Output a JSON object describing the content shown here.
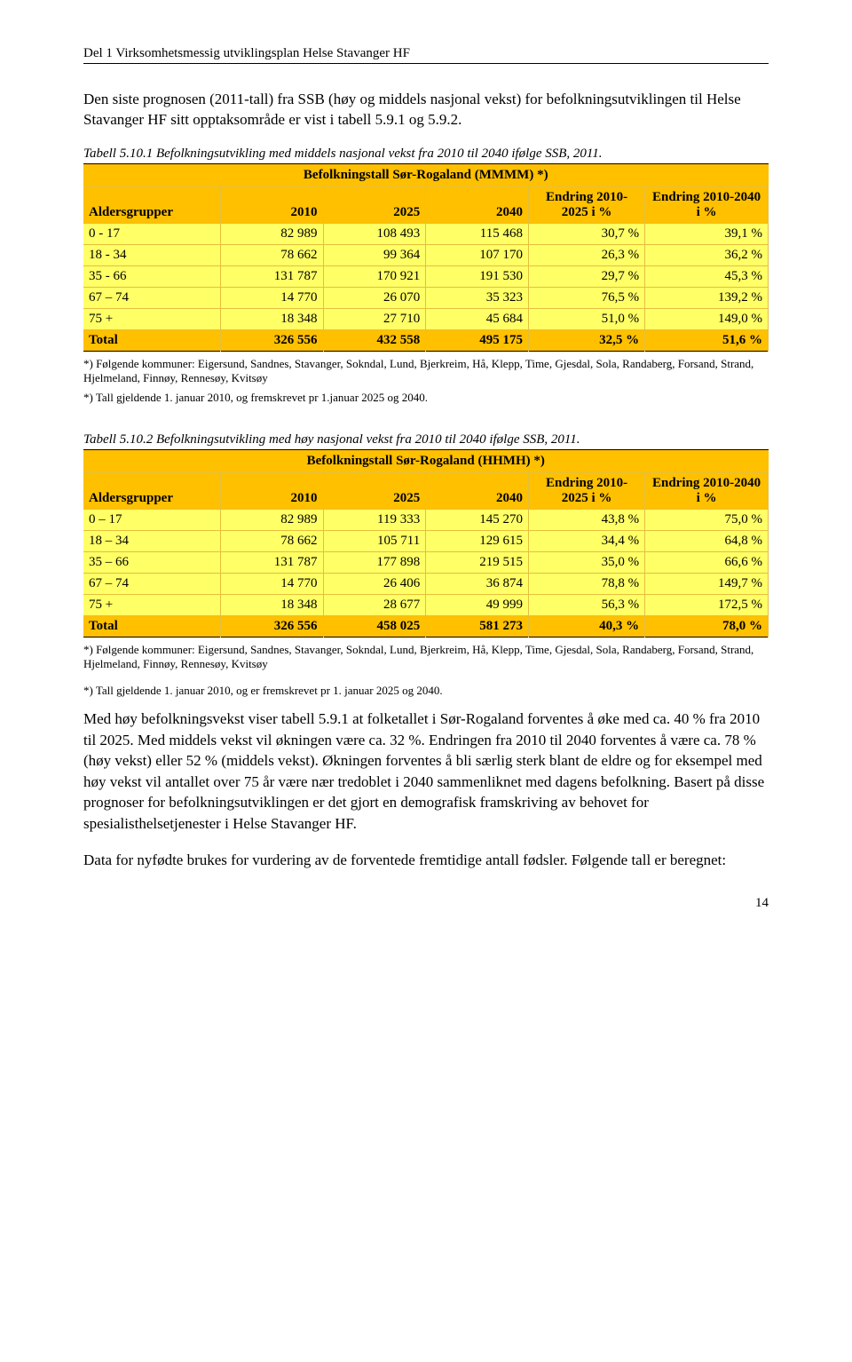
{
  "header": "Del 1 Virksomhetsmessig utviklingsplan Helse Stavanger HF",
  "intro": "Den siste prognosen (2011-tall) fra SSB (høy og middels nasjonal vekst) for befolkningsutviklingen til Helse Stavanger HF sitt opptaksområde er vist i tabell 5.9.1 og 5.9.2.",
  "table1": {
    "caption": "Tabell 5.10.1 Befolkningsutvikling med middels nasjonal vekst fra 2010 til 2040 ifølge SSB, 2011.",
    "title": "Befolkningstall Sør-Rogaland (MMMM) *)",
    "colors": {
      "title_bg": "#ffc000",
      "header_bg": "#ffc000",
      "row_bg": "#ffff66",
      "total_bg": "#ffc000",
      "border": "#e4bf3e"
    },
    "col_widths": [
      "20%",
      "15%",
      "15%",
      "15%",
      "17%",
      "18%"
    ],
    "headers": [
      "Aldersgrupper",
      "2010",
      "2025",
      "2040",
      "Endring 2010-2025 i %",
      "Endring 2010-2040 i %"
    ],
    "rows": [
      {
        "g": "0 - 17",
        "a": "82 989",
        "b": "108 493",
        "c": "115 468",
        "d": "30,7 %",
        "e": "39,1 %"
      },
      {
        "g": "18 - 34",
        "a": "78 662",
        "b": "99 364",
        "c": "107 170",
        "d": "26,3 %",
        "e": "36,2 %"
      },
      {
        "g": "35 - 66",
        "a": "131 787",
        "b": "170 921",
        "c": "191 530",
        "d": "29,7 %",
        "e": "45,3 %"
      },
      {
        "g": "67 – 74",
        "a": "14 770",
        "b": "26 070",
        "c": "35 323",
        "d": "76,5 %",
        "e": "139,2 %"
      },
      {
        "g": "75 +",
        "a": "18 348",
        "b": "27 710",
        "c": "45 684",
        "d": "51,0 %",
        "e": "149,0 %"
      }
    ],
    "total": {
      "g": "Total",
      "a": "326 556",
      "b": "432 558",
      "c": "495 175",
      "d": "32,5 %",
      "e": "51,6 %"
    }
  },
  "footnote1a": "*) Følgende kommuner: Eigersund, Sandnes, Stavanger, Sokndal, Lund, Bjerkreim, Hå, Klepp, Time, Gjesdal, Sola, Randaberg, Forsand, Strand, Hjelmeland, Finnøy, Rennesøy, Kvitsøy",
  "footnote1b": "*) Tall gjeldende 1. januar 2010, og fremskrevet pr 1.januar 2025 og 2040.",
  "table2": {
    "caption": "Tabell 5.10.2 Befolkningsutvikling med høy nasjonal vekst fra 2010 til 2040 ifølge SSB, 2011.",
    "title": "Befolkningstall Sør-Rogaland (HHMH) *)",
    "colors": {
      "title_bg": "#ffc000",
      "header_bg": "#ffc000",
      "row_bg": "#ffff66",
      "total_bg": "#ffc000",
      "border": "#e4bf3e"
    },
    "col_widths": [
      "20%",
      "15%",
      "15%",
      "15%",
      "17%",
      "18%"
    ],
    "headers": [
      "Aldersgrupper",
      "2010",
      "2025",
      "2040",
      "Endring 2010-2025 i %",
      "Endring 2010-2040 i %"
    ],
    "rows": [
      {
        "g": "0 – 17",
        "a": "82 989",
        "b": "119 333",
        "c": "145 270",
        "d": "43,8 %",
        "e": "75,0 %"
      },
      {
        "g": "18 – 34",
        "a": "78 662",
        "b": "105 711",
        "c": "129 615",
        "d": "34,4 %",
        "e": "64,8 %"
      },
      {
        "g": "35 – 66",
        "a": "131 787",
        "b": "177 898",
        "c": "219 515",
        "d": "35,0 %",
        "e": "66,6 %"
      },
      {
        "g": "67 – 74",
        "a": "14 770",
        "b": "26 406",
        "c": "36 874",
        "d": "78,8 %",
        "e": "149,7 %"
      },
      {
        "g": "75 +",
        "a": "18 348",
        "b": "28 677",
        "c": "49 999",
        "d": "56,3 %",
        "e": "172,5 %"
      }
    ],
    "total": {
      "g": "Total",
      "a": "326 556",
      "b": "458 025",
      "c": "581 273",
      "d": "40,3 %",
      "e": "78,0 %"
    }
  },
  "footnote2a": "*) Følgende kommuner: Eigersund, Sandnes, Stavanger, Sokndal, Lund, Bjerkreim, Hå, Klepp, Time, Gjesdal, Sola, Randaberg, Forsand, Strand, Hjelmeland, Finnøy, Rennesøy, Kvitsøy",
  "footnote2b": "*) Tall gjeldende 1. januar 2010, og er fremskrevet pr 1. januar 2025 og 2040.",
  "para2": "Med høy befolkningsvekst viser tabell 5.9.1 at folketallet i Sør-Rogaland forventes å øke med ca. 40 % fra 2010 til 2025. Med middels vekst vil økningen være ca. 32 %. Endringen fra 2010 til 2040 forventes å være ca. 78 % (høy vekst) eller 52 % (middels vekst). Økningen forventes å bli særlig sterk blant de eldre og for eksempel med høy vekst vil antallet over 75 år være nær tredoblet i 2040 sammenliknet med dagens befolkning. Basert på disse prognoser for befolkningsutviklingen er det gjort en demografisk framskriving av behovet for spesialisthelsetjenester i Helse Stavanger HF.",
  "para3": "Data for nyfødte brukes for vurdering av de forventede fremtidige antall fødsler. Følgende tall er beregnet:",
  "page_num": "14"
}
